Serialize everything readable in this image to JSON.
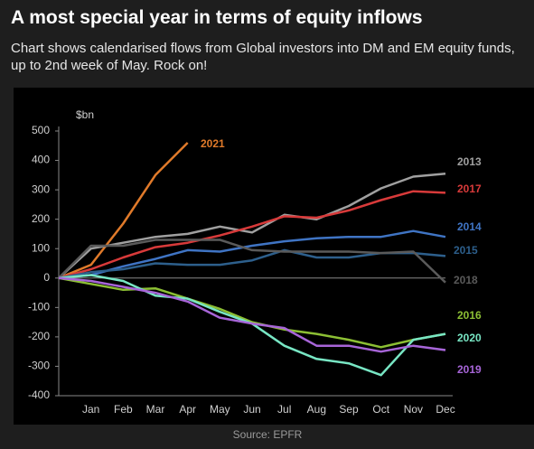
{
  "chart_data": {
    "type": "line",
    "title": "A most special year in terms of equity inflows",
    "subtitle": "Chart shows calendarised flows from Global investors into DM and EM equity funds, up to 2nd week of May. Rock on!",
    "y_label": "$bn",
    "source": "Source: EPFR",
    "categories": [
      null,
      "Jan",
      "Feb",
      "Mar",
      "Apr",
      "May",
      "Jun",
      "Jul",
      "Aug",
      "Sep",
      "Oct",
      "Nov",
      "Dec"
    ],
    "ylim": [
      -400,
      500
    ],
    "yticks": [
      -400,
      -300,
      -200,
      -100,
      0,
      100,
      200,
      300,
      400,
      500
    ],
    "series": [
      {
        "name": "2021",
        "color": "#e07a2a",
        "values": [
          0,
          45,
          185,
          350,
          460,
          null,
          null,
          null,
          null,
          null,
          null,
          null,
          null
        ]
      },
      {
        "name": "2013",
        "color": "#a0a0a0",
        "values": [
          0,
          100,
          120,
          140,
          150,
          175,
          155,
          215,
          200,
          245,
          305,
          345,
          355
        ]
      },
      {
        "name": "2017",
        "color": "#d83a3a",
        "values": [
          0,
          30,
          70,
          105,
          120,
          145,
          175,
          210,
          205,
          230,
          265,
          295,
          290
        ]
      },
      {
        "name": "2014",
        "color": "#3f74c4",
        "values": [
          0,
          10,
          40,
          65,
          95,
          90,
          110,
          125,
          135,
          140,
          140,
          160,
          140
        ]
      },
      {
        "name": "2015",
        "color": "#2d5f8c",
        "values": [
          0,
          20,
          30,
          50,
          45,
          45,
          60,
          95,
          70,
          70,
          85,
          85,
          75
        ]
      },
      {
        "name": "2018",
        "color": "#5a5a5a",
        "values": [
          0,
          110,
          110,
          130,
          130,
          130,
          95,
          90,
          90,
          90,
          85,
          90,
          -15
        ]
      },
      {
        "name": "2016",
        "color": "#8cbf34",
        "values": [
          0,
          -20,
          -40,
          -35,
          -70,
          -105,
          -150,
          -175,
          -190,
          -210,
          -235,
          -210,
          -190
        ]
      },
      {
        "name": "2020",
        "color": "#78e6c4",
        "values": [
          0,
          10,
          -10,
          -60,
          -70,
          -115,
          -155,
          -230,
          -275,
          -290,
          -330,
          -210,
          -190
        ]
      },
      {
        "name": "2019",
        "color": "#a765d8",
        "values": [
          0,
          -10,
          -30,
          -50,
          -80,
          -135,
          -155,
          -170,
          -230,
          -230,
          -250,
          -230,
          -245
        ]
      }
    ]
  }
}
